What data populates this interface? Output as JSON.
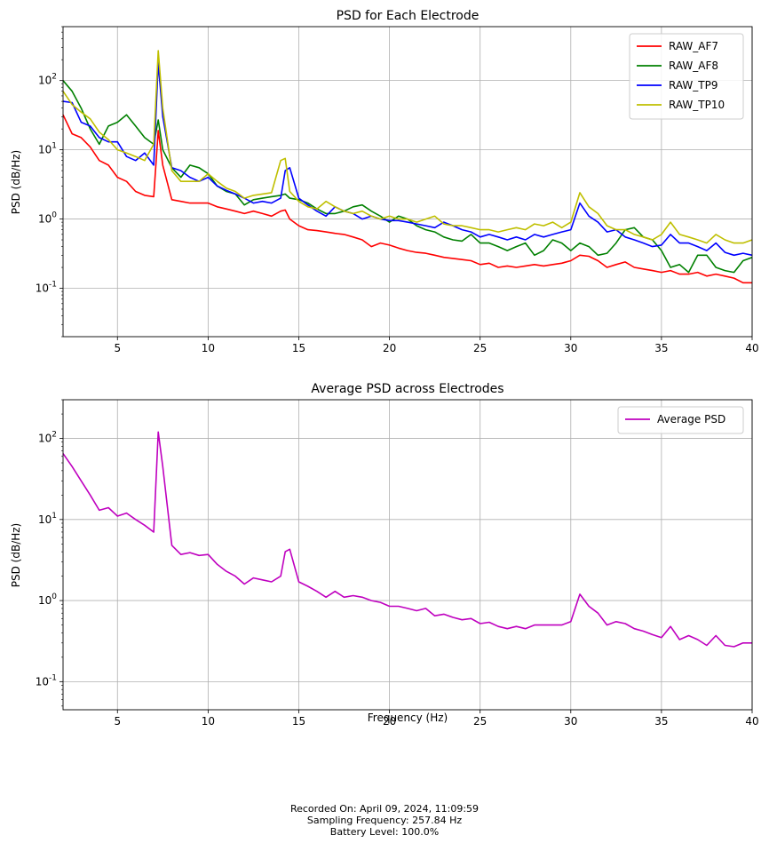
{
  "chart_data": [
    {
      "type": "line",
      "title": "PSD for Each Electrode",
      "xlabel": "",
      "ylabel": "PSD (dB/Hz)",
      "xlim": [
        2,
        40
      ],
      "ylim": [
        0.02,
        600
      ],
      "yscale": "log",
      "grid": true,
      "legend": "top-right",
      "x_ticks": [
        "5",
        "10",
        "15",
        "20",
        "25",
        "30",
        "35",
        "40"
      ],
      "y_ticks": [
        "10^-1",
        "10^0",
        "10^1",
        "10^2"
      ],
      "x": [
        2,
        2.5,
        3,
        3.5,
        4,
        4.5,
        5,
        5.5,
        6,
        6.5,
        7,
        7.25,
        7.5,
        8,
        8.5,
        9,
        9.5,
        10,
        10.5,
        11,
        11.5,
        12,
        12.5,
        13,
        13.5,
        14,
        14.25,
        14.5,
        15,
        15.5,
        16,
        16.5,
        17,
        17.5,
        18,
        18.5,
        19,
        19.5,
        20,
        20.5,
        21,
        21.5,
        22,
        22.5,
        23,
        23.5,
        24,
        24.5,
        25,
        25.5,
        26,
        26.5,
        27,
        27.5,
        28,
        28.5,
        29,
        29.5,
        30,
        30.5,
        31,
        31.5,
        32,
        32.5,
        33,
        33.5,
        34,
        34.5,
        35,
        35.5,
        36,
        36.5,
        37,
        37.5,
        38,
        38.5,
        39,
        39.5,
        40
      ],
      "series": [
        {
          "name": "RAW_AF7",
          "color": "#ff0000",
          "values": [
            32,
            17,
            15,
            11,
            7,
            6,
            4,
            3.5,
            2.5,
            2.2,
            2.1,
            19,
            6,
            1.9,
            1.8,
            1.7,
            1.7,
            1.7,
            1.5,
            1.4,
            1.3,
            1.2,
            1.3,
            1.2,
            1.1,
            1.3,
            1.35,
            1.0,
            0.8,
            0.7,
            0.68,
            0.65,
            0.62,
            0.6,
            0.55,
            0.5,
            0.4,
            0.45,
            0.42,
            0.38,
            0.35,
            0.33,
            0.32,
            0.3,
            0.28,
            0.27,
            0.26,
            0.25,
            0.22,
            0.23,
            0.2,
            0.21,
            0.2,
            0.21,
            0.22,
            0.21,
            0.22,
            0.23,
            0.25,
            0.3,
            0.29,
            0.25,
            0.2,
            0.22,
            0.24,
            0.2,
            0.19,
            0.18,
            0.17,
            0.18,
            0.16,
            0.16,
            0.17,
            0.15,
            0.16,
            0.15,
            0.14,
            0.12,
            0.12
          ]
        },
        {
          "name": "RAW_AF8",
          "color": "#008000",
          "values": [
            100,
            70,
            40,
            20,
            12,
            22,
            25,
            32,
            22,
            15,
            12,
            27,
            10,
            5.5,
            4,
            6,
            5.5,
            4.5,
            3,
            2.5,
            2.3,
            1.6,
            1.9,
            2,
            2.1,
            2.2,
            2.3,
            2,
            1.9,
            1.7,
            1.4,
            1.2,
            1.2,
            1.3,
            1.5,
            1.6,
            1.3,
            1.1,
            0.9,
            1.1,
            1.0,
            0.8,
            0.7,
            0.65,
            0.55,
            0.5,
            0.48,
            0.6,
            0.45,
            0.45,
            0.4,
            0.35,
            0.4,
            0.45,
            0.3,
            0.35,
            0.5,
            0.45,
            0.35,
            0.45,
            0.4,
            0.3,
            0.32,
            0.45,
            0.7,
            0.75,
            0.55,
            0.5,
            0.35,
            0.2,
            0.22,
            0.17,
            0.3,
            0.3,
            0.2,
            0.18,
            0.17,
            0.25,
            0.28
          ]
        },
        {
          "name": "RAW_TP9",
          "color": "#0000ff",
          "values": [
            50,
            48,
            25,
            22,
            15,
            13,
            13,
            8,
            7,
            9,
            6,
            180,
            30,
            5.5,
            5,
            4,
            3.5,
            4,
            3,
            2.6,
            2.3,
            2,
            1.7,
            1.8,
            1.7,
            2,
            5,
            5.5,
            2,
            1.6,
            1.3,
            1.1,
            1.5,
            1.3,
            1.2,
            1.0,
            1.1,
            1.0,
            0.95,
            0.95,
            0.9,
            0.85,
            0.8,
            0.75,
            0.9,
            0.8,
            0.7,
            0.65,
            0.55,
            0.6,
            0.55,
            0.5,
            0.55,
            0.5,
            0.6,
            0.55,
            0.6,
            0.65,
            0.7,
            1.7,
            1.1,
            0.9,
            0.65,
            0.7,
            0.55,
            0.5,
            0.45,
            0.4,
            0.42,
            0.6,
            0.45,
            0.45,
            0.4,
            0.35,
            0.45,
            0.33,
            0.3,
            0.32,
            0.3
          ]
        },
        {
          "name": "RAW_TP10",
          "color": "#bfbf00",
          "values": [
            70,
            45,
            35,
            28,
            18,
            14,
            10,
            9,
            8,
            7,
            12,
            270,
            40,
            5,
            3.5,
            3.5,
            3.5,
            4.5,
            3.5,
            2.8,
            2.5,
            2,
            2.2,
            2.3,
            2.4,
            7,
            7.5,
            2.5,
            1.8,
            1.5,
            1.4,
            1.8,
            1.5,
            1.3,
            1.2,
            1.3,
            1.1,
            1.0,
            1.1,
            1.0,
            1.0,
            0.9,
            1.0,
            1.1,
            0.85,
            0.8,
            0.8,
            0.75,
            0.7,
            0.7,
            0.65,
            0.7,
            0.75,
            0.7,
            0.85,
            0.8,
            0.9,
            0.75,
            0.9,
            2.4,
            1.5,
            1.2,
            0.8,
            0.7,
            0.7,
            0.6,
            0.55,
            0.5,
            0.6,
            0.9,
            0.6,
            0.55,
            0.5,
            0.45,
            0.6,
            0.5,
            0.45,
            0.45,
            0.5
          ]
        }
      ]
    },
    {
      "type": "line",
      "title": "Average PSD across Electrodes",
      "xlabel": "Frequency (Hz)",
      "ylabel": "PSD (dB/Hz)",
      "xlim": [
        2,
        40
      ],
      "ylim": [
        0.045,
        300
      ],
      "yscale": "log",
      "grid": true,
      "legend": "top-right",
      "x_ticks": [
        "5",
        "10",
        "15",
        "20",
        "25",
        "30",
        "35",
        "40"
      ],
      "y_ticks": [
        "10^-1",
        "10^0",
        "10^1",
        "10^2"
      ],
      "x": [
        2,
        2.5,
        3,
        3.5,
        4,
        4.5,
        5,
        5.5,
        6,
        6.5,
        7,
        7.25,
        7.5,
        8,
        8.5,
        9,
        9.5,
        10,
        10.5,
        11,
        11.5,
        12,
        12.5,
        13,
        13.5,
        14,
        14.25,
        14.5,
        15,
        15.5,
        16,
        16.5,
        17,
        17.5,
        18,
        18.5,
        19,
        19.5,
        20,
        20.5,
        21,
        21.5,
        22,
        22.5,
        23,
        23.5,
        24,
        24.5,
        25,
        25.5,
        26,
        26.5,
        27,
        27.5,
        28,
        28.5,
        29,
        29.5,
        30,
        30.5,
        31,
        31.5,
        32,
        32.5,
        33,
        33.5,
        34,
        34.5,
        35,
        35.5,
        36,
        36.5,
        37,
        37.5,
        38,
        38.5,
        39,
        39.5,
        40
      ],
      "series": [
        {
          "name": "Average PSD",
          "color": "#bf00bf",
          "values": [
            65,
            45,
            30,
            20,
            13,
            14,
            11,
            12,
            10,
            8.5,
            7,
            120,
            45,
            4.8,
            3.7,
            3.9,
            3.6,
            3.7,
            2.8,
            2.3,
            2.0,
            1.6,
            1.9,
            1.8,
            1.7,
            2.0,
            4.0,
            4.3,
            1.7,
            1.5,
            1.3,
            1.1,
            1.3,
            1.1,
            1.15,
            1.1,
            1.0,
            0.95,
            0.85,
            0.85,
            0.8,
            0.75,
            0.8,
            0.65,
            0.68,
            0.62,
            0.58,
            0.6,
            0.52,
            0.54,
            0.48,
            0.45,
            0.48,
            0.45,
            0.5,
            0.5,
            0.5,
            0.5,
            0.55,
            1.2,
            0.85,
            0.7,
            0.5,
            0.55,
            0.52,
            0.45,
            0.42,
            0.38,
            0.35,
            0.48,
            0.33,
            0.37,
            0.33,
            0.28,
            0.37,
            0.28,
            0.27,
            0.3,
            0.3
          ]
        }
      ]
    }
  ],
  "footer": {
    "line1": "Recorded On: April 09, 2024, 11:09:59",
    "line2": "Sampling Frequency: 257.84 Hz",
    "line3": "Battery Level: 100.0%"
  }
}
